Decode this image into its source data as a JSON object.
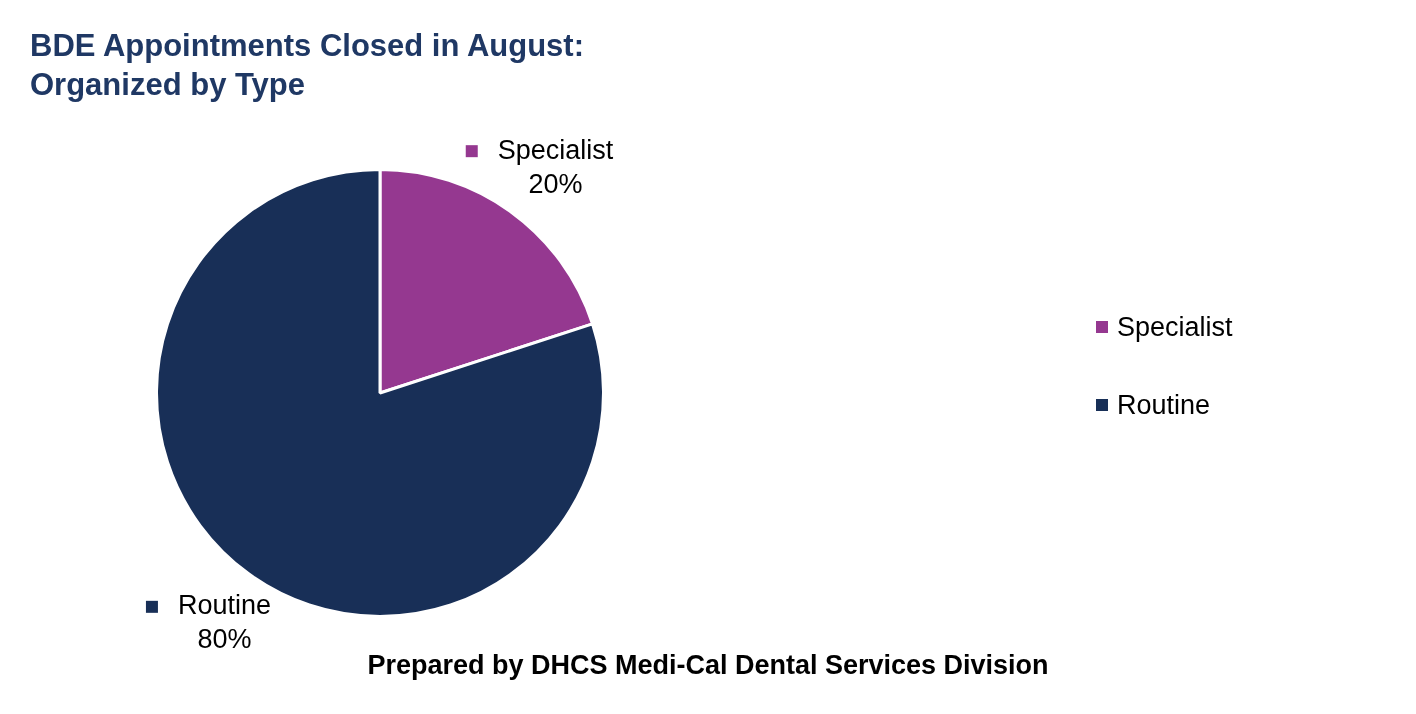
{
  "chart_data": {
    "type": "pie",
    "title": "BDE Appointments Closed in August: Organized by Type",
    "categories": [
      "Specialist",
      "Routine"
    ],
    "values": [
      20,
      80
    ],
    "value_labels": [
      "20%",
      "80%"
    ],
    "colors": [
      "#953890",
      "#182f57"
    ],
    "legend": "right",
    "annotations": [
      "Prepared by DHCS Medi-Cal Dental Services Division"
    ]
  }
}
